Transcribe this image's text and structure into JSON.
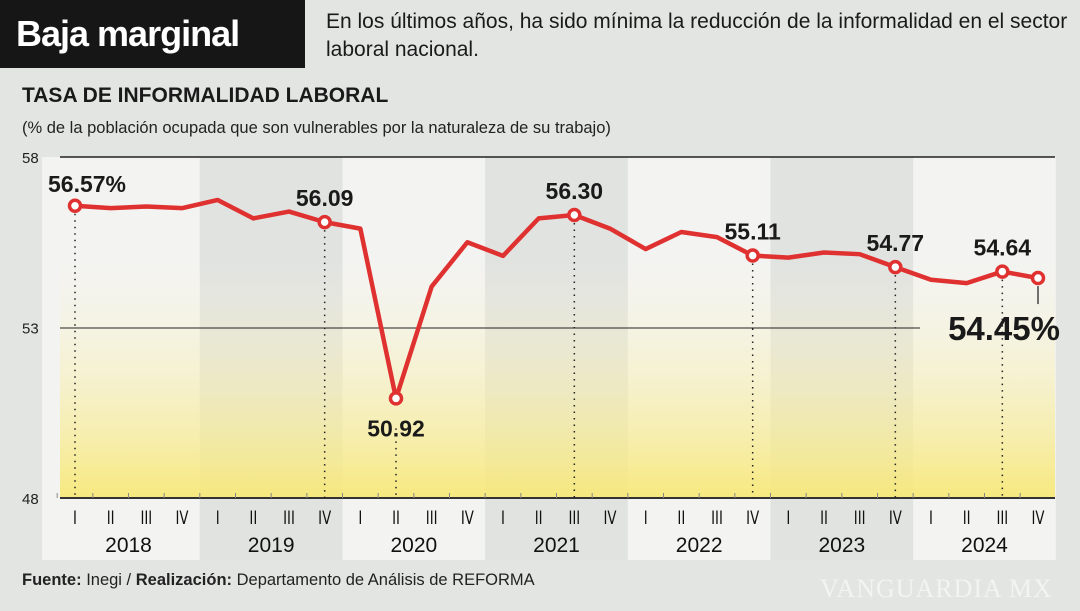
{
  "header": {
    "title": "Baja marginal",
    "subtitle": "En los últimos años, ha sido mínima la reducción de la informalidad en el sector laboral nacional."
  },
  "footer": {
    "source_label": "Fuente:",
    "source": "Inegi /",
    "credit_label": "Realización:",
    "credit": "Departamento de Análisis de REFORMA"
  },
  "watermark": "VANGUARDIA MX",
  "chart_data": {
    "type": "line",
    "title": "TASA DE INFORMALIDAD LABORAL",
    "subtitle": "(% de la población ocupada que son vulnerables por la naturaleza de su trabajo)",
    "ylim": [
      48,
      58
    ],
    "yticks": [
      "48",
      "53",
      "58"
    ],
    "years": [
      "2018",
      "2019",
      "2020",
      "2021",
      "2022",
      "2023",
      "2024"
    ],
    "quarters": [
      "I",
      "II",
      "III",
      "IV"
    ],
    "line_color": "#e03131",
    "values": [
      56.57,
      56.5,
      56.55,
      56.5,
      56.74,
      56.2,
      56.4,
      56.09,
      55.9,
      50.92,
      54.2,
      55.5,
      55.1,
      56.2,
      56.3,
      55.9,
      55.3,
      55.8,
      55.65,
      55.11,
      55.05,
      55.2,
      55.15,
      54.77,
      54.4,
      54.3,
      54.64,
      54.45
    ],
    "annotations": [
      {
        "index": 0,
        "text": "56.57%"
      },
      {
        "index": 7,
        "text": "56.09"
      },
      {
        "index": 9,
        "text": "50.92"
      },
      {
        "index": 14,
        "text": "56.30"
      },
      {
        "index": 19,
        "text": "55.11"
      },
      {
        "index": 23,
        "text": "54.77"
      },
      {
        "index": 26,
        "text": "54.64"
      },
      {
        "index": 27,
        "text": "54.45%"
      }
    ]
  }
}
